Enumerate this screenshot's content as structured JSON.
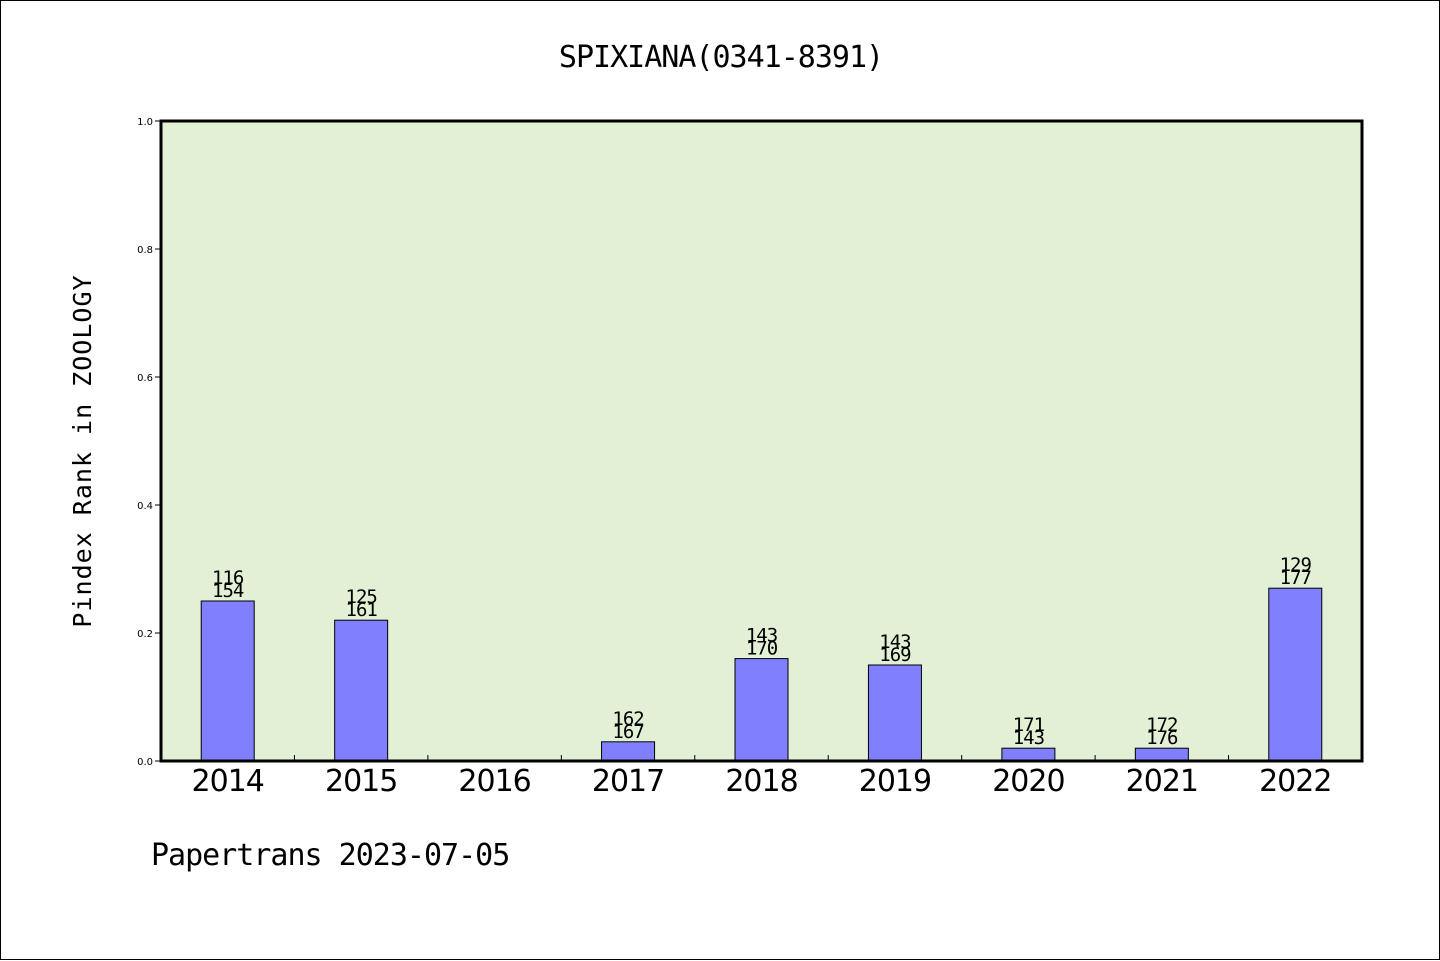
{
  "chart_data": {
    "type": "bar",
    "title": "SPIXIANA(0341-8391)",
    "ylabel": "Pindex Rank in ZOOLOGY",
    "xlabel": "",
    "footer": "Papertrans 2023-07-05",
    "ylim": [
      0,
      1.0
    ],
    "yticks": [
      "0.0",
      "0.2",
      "0.4",
      "0.6",
      "0.8",
      "1.0"
    ],
    "categories": [
      "2014",
      "2015",
      "2016",
      "2017",
      "2018",
      "2019",
      "2020",
      "2021",
      "2022"
    ],
    "values": [
      0.25,
      0.22,
      null,
      0.03,
      0.16,
      0.15,
      0.02,
      0.02,
      0.27
    ],
    "labels_top": [
      "116",
      "125",
      "",
      "162",
      "143",
      "143",
      "171",
      "172",
      "129"
    ],
    "labels_bottom": [
      "154",
      "161",
      "",
      "167",
      "170",
      "169",
      "143",
      "176",
      "177"
    ],
    "grid": false,
    "colors": {
      "plot_background": "#e2f0d6",
      "bar_fill": "#8080ff",
      "axis": "#000000"
    }
  }
}
